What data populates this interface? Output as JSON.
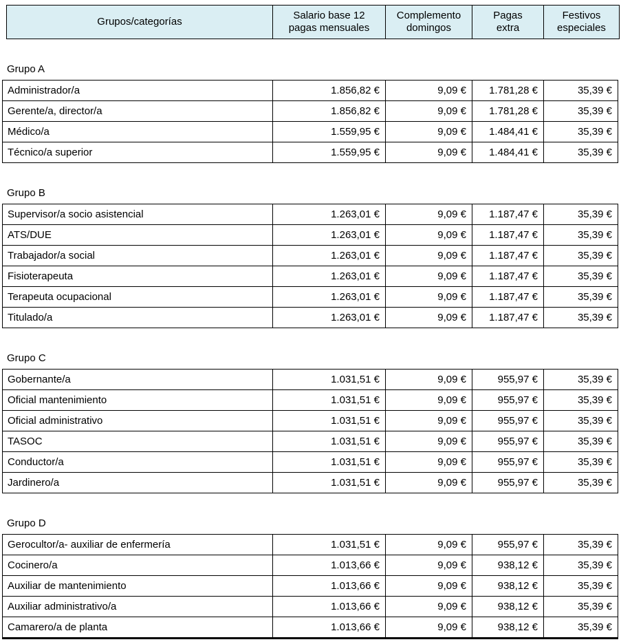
{
  "colors": {
    "header_bg": "#DAEEF3",
    "border": "#000000",
    "text": "#000000",
    "page_bg": "#FFFFFF"
  },
  "header": {
    "columns": [
      {
        "label": "Grupos/categorías",
        "lines": [
          "Grupos/categorías"
        ]
      },
      {
        "label": "Salario base 12 pagas mensuales",
        "lines": [
          "Salario base 12",
          "pagas mensuales"
        ]
      },
      {
        "label": "Complemento domingos",
        "lines": [
          "Complemento",
          "domingos"
        ]
      },
      {
        "label": "Pagas extra",
        "lines": [
          "Pagas",
          "extra"
        ]
      },
      {
        "label": "Festivos especiales",
        "lines": [
          "Festivos",
          "especiales"
        ]
      }
    ]
  },
  "groups": [
    {
      "label": "Grupo A",
      "rows": [
        {
          "category": "Administrador/a",
          "salario_base": "1.856,82 €",
          "complemento_domingos": "9,09 €",
          "pagas_extra": "1.781,28 €",
          "festivos_especiales": "35,39 €"
        },
        {
          "category": "Gerente/a, director/a",
          "salario_base": "1.856,82 €",
          "complemento_domingos": "9,09 €",
          "pagas_extra": "1.781,28 €",
          "festivos_especiales": "35,39 €"
        },
        {
          "category": "Médico/a",
          "salario_base": "1.559,95 €",
          "complemento_domingos": "9,09 €",
          "pagas_extra": "1.484,41 €",
          "festivos_especiales": "35,39 €"
        },
        {
          "category": "Técnico/a superior",
          "salario_base": "1.559,95 €",
          "complemento_domingos": "9,09 €",
          "pagas_extra": "1.484,41 €",
          "festivos_especiales": "35,39 €"
        }
      ]
    },
    {
      "label": "Grupo B",
      "rows": [
        {
          "category": "Supervisor/a socio asistencial",
          "salario_base": "1.263,01 €",
          "complemento_domingos": "9,09 €",
          "pagas_extra": "1.187,47 €",
          "festivos_especiales": "35,39 €"
        },
        {
          "category": "ATS/DUE",
          "salario_base": "1.263,01 €",
          "complemento_domingos": "9,09 €",
          "pagas_extra": "1.187,47 €",
          "festivos_especiales": "35,39 €"
        },
        {
          "category": "Trabajador/a social",
          "salario_base": "1.263,01 €",
          "complemento_domingos": "9,09 €",
          "pagas_extra": "1.187,47 €",
          "festivos_especiales": "35,39 €"
        },
        {
          "category": "Fisioterapeuta",
          "salario_base": "1.263,01 €",
          "complemento_domingos": "9,09 €",
          "pagas_extra": "1.187,47 €",
          "festivos_especiales": "35,39 €"
        },
        {
          "category": "Terapeuta ocupacional",
          "salario_base": "1.263,01 €",
          "complemento_domingos": "9,09 €",
          "pagas_extra": "1.187,47 €",
          "festivos_especiales": "35,39 €"
        },
        {
          "category": "Titulado/a",
          "salario_base": "1.263,01 €",
          "complemento_domingos": "9,09 €",
          "pagas_extra": "1.187,47 €",
          "festivos_especiales": "35,39 €"
        }
      ]
    },
    {
      "label": "Grupo C",
      "rows": [
        {
          "category": "Gobernante/a",
          "salario_base": "1.031,51 €",
          "complemento_domingos": "9,09 €",
          "pagas_extra": "955,97 €",
          "festivos_especiales": "35,39 €"
        },
        {
          "category": "Oficial mantenimiento",
          "salario_base": "1.031,51 €",
          "complemento_domingos": "9,09 €",
          "pagas_extra": "955,97 €",
          "festivos_especiales": "35,39 €"
        },
        {
          "category": "Oficial administrativo",
          "salario_base": "1.031,51 €",
          "complemento_domingos": "9,09 €",
          "pagas_extra": "955,97 €",
          "festivos_especiales": "35,39 €"
        },
        {
          "category": "TASOC",
          "salario_base": "1.031,51 €",
          "complemento_domingos": "9,09 €",
          "pagas_extra": "955,97 €",
          "festivos_especiales": "35,39 €"
        },
        {
          "category": "Conductor/a",
          "salario_base": "1.031,51 €",
          "complemento_domingos": "9,09 €",
          "pagas_extra": "955,97 €",
          "festivos_especiales": "35,39 €"
        },
        {
          "category": "Jardinero/a",
          "salario_base": "1.031,51 €",
          "complemento_domingos": "9,09 €",
          "pagas_extra": "955,97 €",
          "festivos_especiales": "35,39 €"
        }
      ]
    },
    {
      "label": "Grupo D",
      "rows": [
        {
          "category": "Gerocultor/a- auxiliar de enfermería",
          "salario_base": "1.031,51 €",
          "complemento_domingos": "9,09 €",
          "pagas_extra": "955,97 €",
          "festivos_especiales": "35,39 €"
        },
        {
          "category": "Cocinero/a",
          "salario_base": "1.013,66 €",
          "complemento_domingos": "9,09 €",
          "pagas_extra": "938,12 €",
          "festivos_especiales": "35,39 €"
        },
        {
          "category": "Auxiliar de mantenimiento",
          "salario_base": "1.013,66 €",
          "complemento_domingos": "9,09 €",
          "pagas_extra": "938,12 €",
          "festivos_especiales": "35,39 €"
        },
        {
          "category": "Auxiliar administrativo/a",
          "salario_base": "1.013,66 €",
          "complemento_domingos": "9,09 €",
          "pagas_extra": "938,12 €",
          "festivos_especiales": "35,39 €"
        },
        {
          "category": "Camarero/a de planta",
          "salario_base": "1.013,66 €",
          "complemento_domingos": "9,09 €",
          "pagas_extra": "938,12 €",
          "festivos_especiales": "35,39 €"
        }
      ]
    }
  ]
}
